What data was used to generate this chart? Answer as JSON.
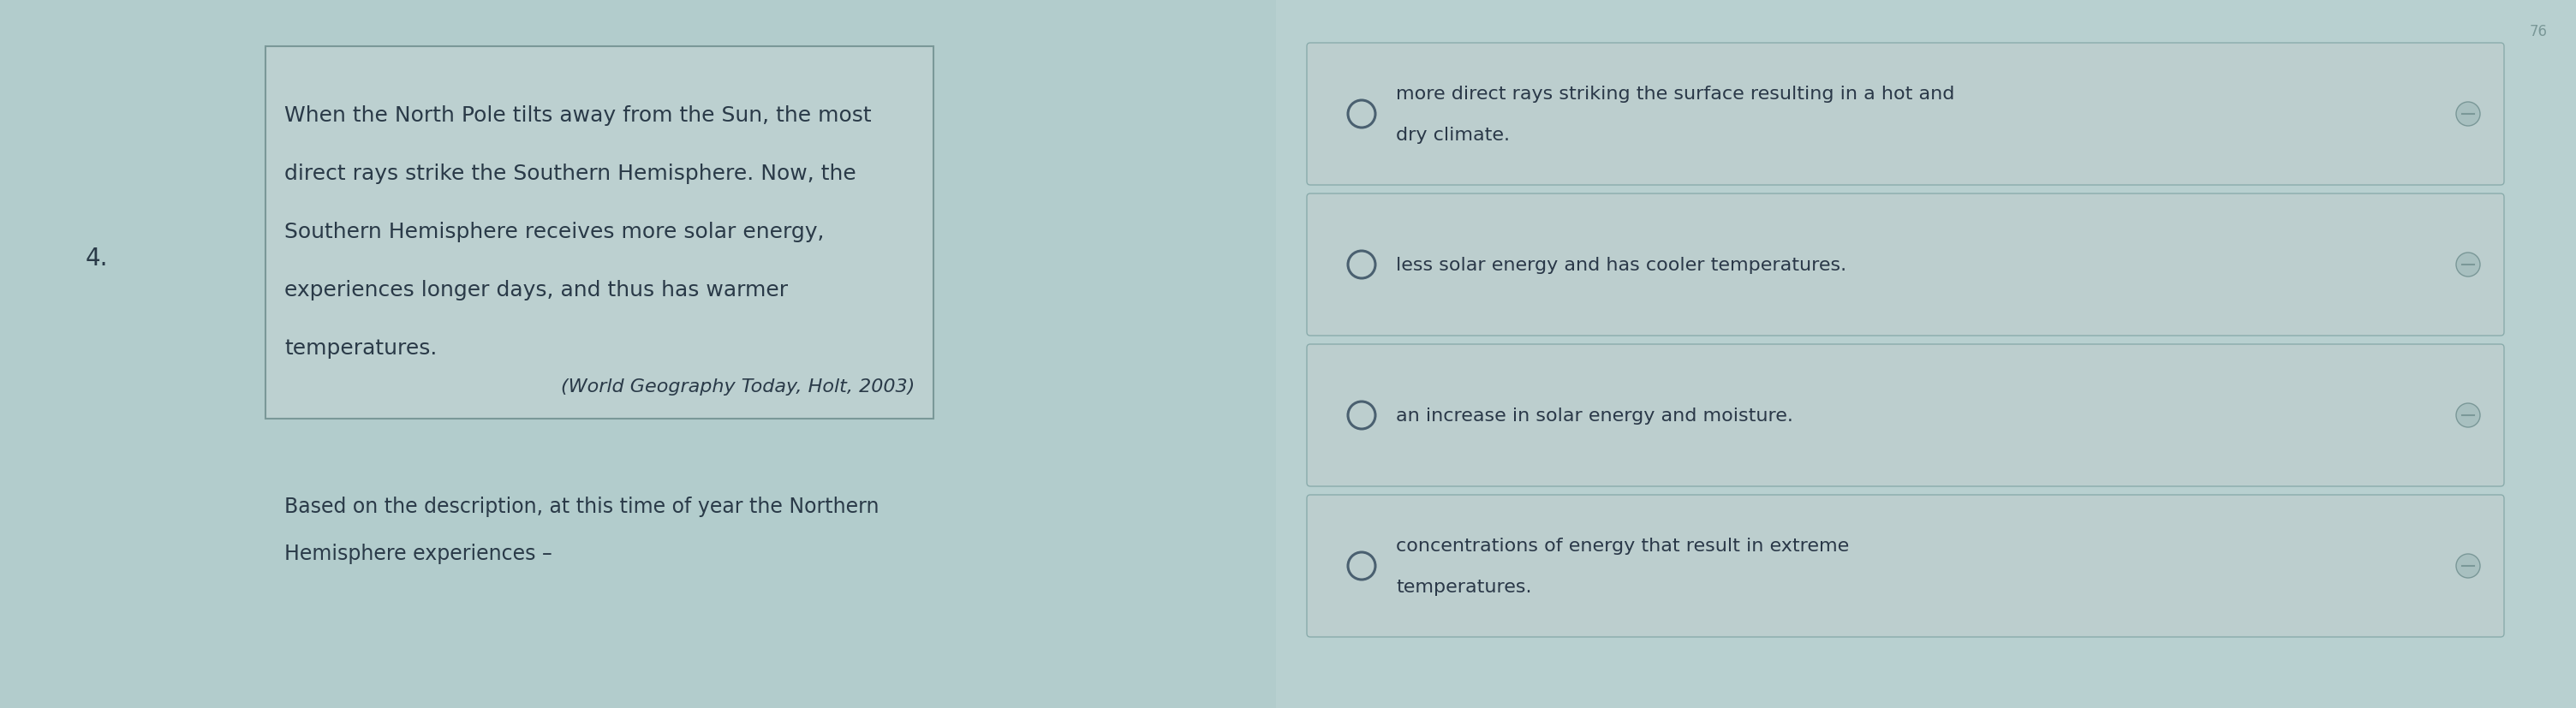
{
  "bg_color": "#aec8c8",
  "left_bg": "#b2cccc",
  "right_bg": "#b8d0d0",
  "question_number": "4.",
  "passage_text": [
    "When the North Pole tilts away from the Sun, the most",
    "direct rays strike the Southern Hemisphere. Now, the",
    "Southern Hemisphere receives more solar energy,",
    "experiences longer days, and thus has warmer",
    "temperatures."
  ],
  "citation": "(World Geography Today, Holt, 2003)",
  "question_text": [
    "Based on the description, at this time of year the Northern",
    "Hemisphere experiences –"
  ],
  "options": [
    "more direct rays striking the surface resulting in a hot and\ndry climate.",
    "less solar energy and has cooler temperatures.",
    "an increase in solar energy and moisture.",
    "concentrations of energy that result in extreme\ntemperatures."
  ],
  "box_facecolor": "#bcd0d0",
  "box_edgecolor": "#7a9898",
  "option_box_facecolor": "#bccece",
  "option_box_edgecolor": "#8aacac",
  "text_color": "#2a3a48",
  "option_text_color": "#2a3848",
  "citation_color": "#2a3a48",
  "number_color": "#2a3a48",
  "radio_edge_color": "#4a6070",
  "indicator_face": "#a8c0c0",
  "indicator_edge": "#7a9898",
  "sep_color": "#8aacac",
  "page_num_color": "#7a9898",
  "font_size_passage": 18,
  "font_size_question": 17,
  "font_size_options_large": 16,
  "font_size_options_small": 14,
  "font_size_number": 20,
  "font_size_citation": 16,
  "font_size_page": 12
}
